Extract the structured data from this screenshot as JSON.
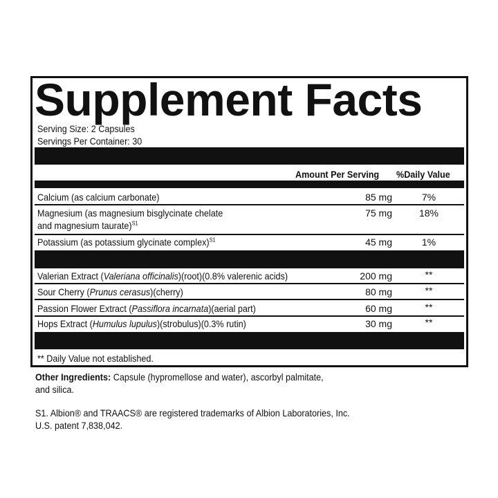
{
  "title": "Supplement Facts",
  "serving_size": "Serving Size: 2 Capsules",
  "servings_per_container": "Servings Per Container: 30",
  "header": {
    "amount": "Amount Per Serving",
    "dv": "%Daily Value"
  },
  "nutrients": [
    {
      "name": "Calcium (as calcium carbonate)",
      "amount": "85 mg",
      "dv": "7%"
    },
    {
      "name_line1": "Magnesium (as magnesium bisglycinate chelate",
      "name_line2": "and magnesium taurate)",
      "sup": "S1",
      "amount": "75 mg",
      "dv": "18%"
    },
    {
      "name": "Potassium (as potassium glycinate complex)",
      "sup": "S1",
      "amount": "45 mg",
      "dv": "1%"
    }
  ],
  "ingredients": [
    {
      "pre": "Valerian Extract (",
      "latin": "Valeriana officinalis",
      "post": ")(root)(0.8% valerenic acids)",
      "amount": "200 mg",
      "dv": "**"
    },
    {
      "pre": "Sour Cherry (",
      "latin": "Prunus cerasus",
      "post": ")(cherry)",
      "amount": "80 mg",
      "dv": "**"
    },
    {
      "pre": "Passion Flower Extract (",
      "latin": "Passiflora incarnata",
      "post": ")(aerial part)",
      "amount": "60 mg",
      "dv": "**"
    },
    {
      "pre": "Hops Extract (",
      "latin": "Humulus lupulus",
      "post": ")(strobulus)(0.3% rutin)",
      "amount": "30 mg",
      "dv": "**"
    }
  ],
  "footnote": "** Daily Value not established.",
  "other_ingredients": {
    "label": "Other Ingredients:",
    "line1": " Capsule (hypromellose and water), ascorbyl palmitate,",
    "line2": "and silica."
  },
  "trademark": {
    "line1": "S1. Albion® and TRAACS® are registered trademarks of Albion Laboratories, Inc.",
    "line2": "U.S. patent 7,838,042."
  }
}
